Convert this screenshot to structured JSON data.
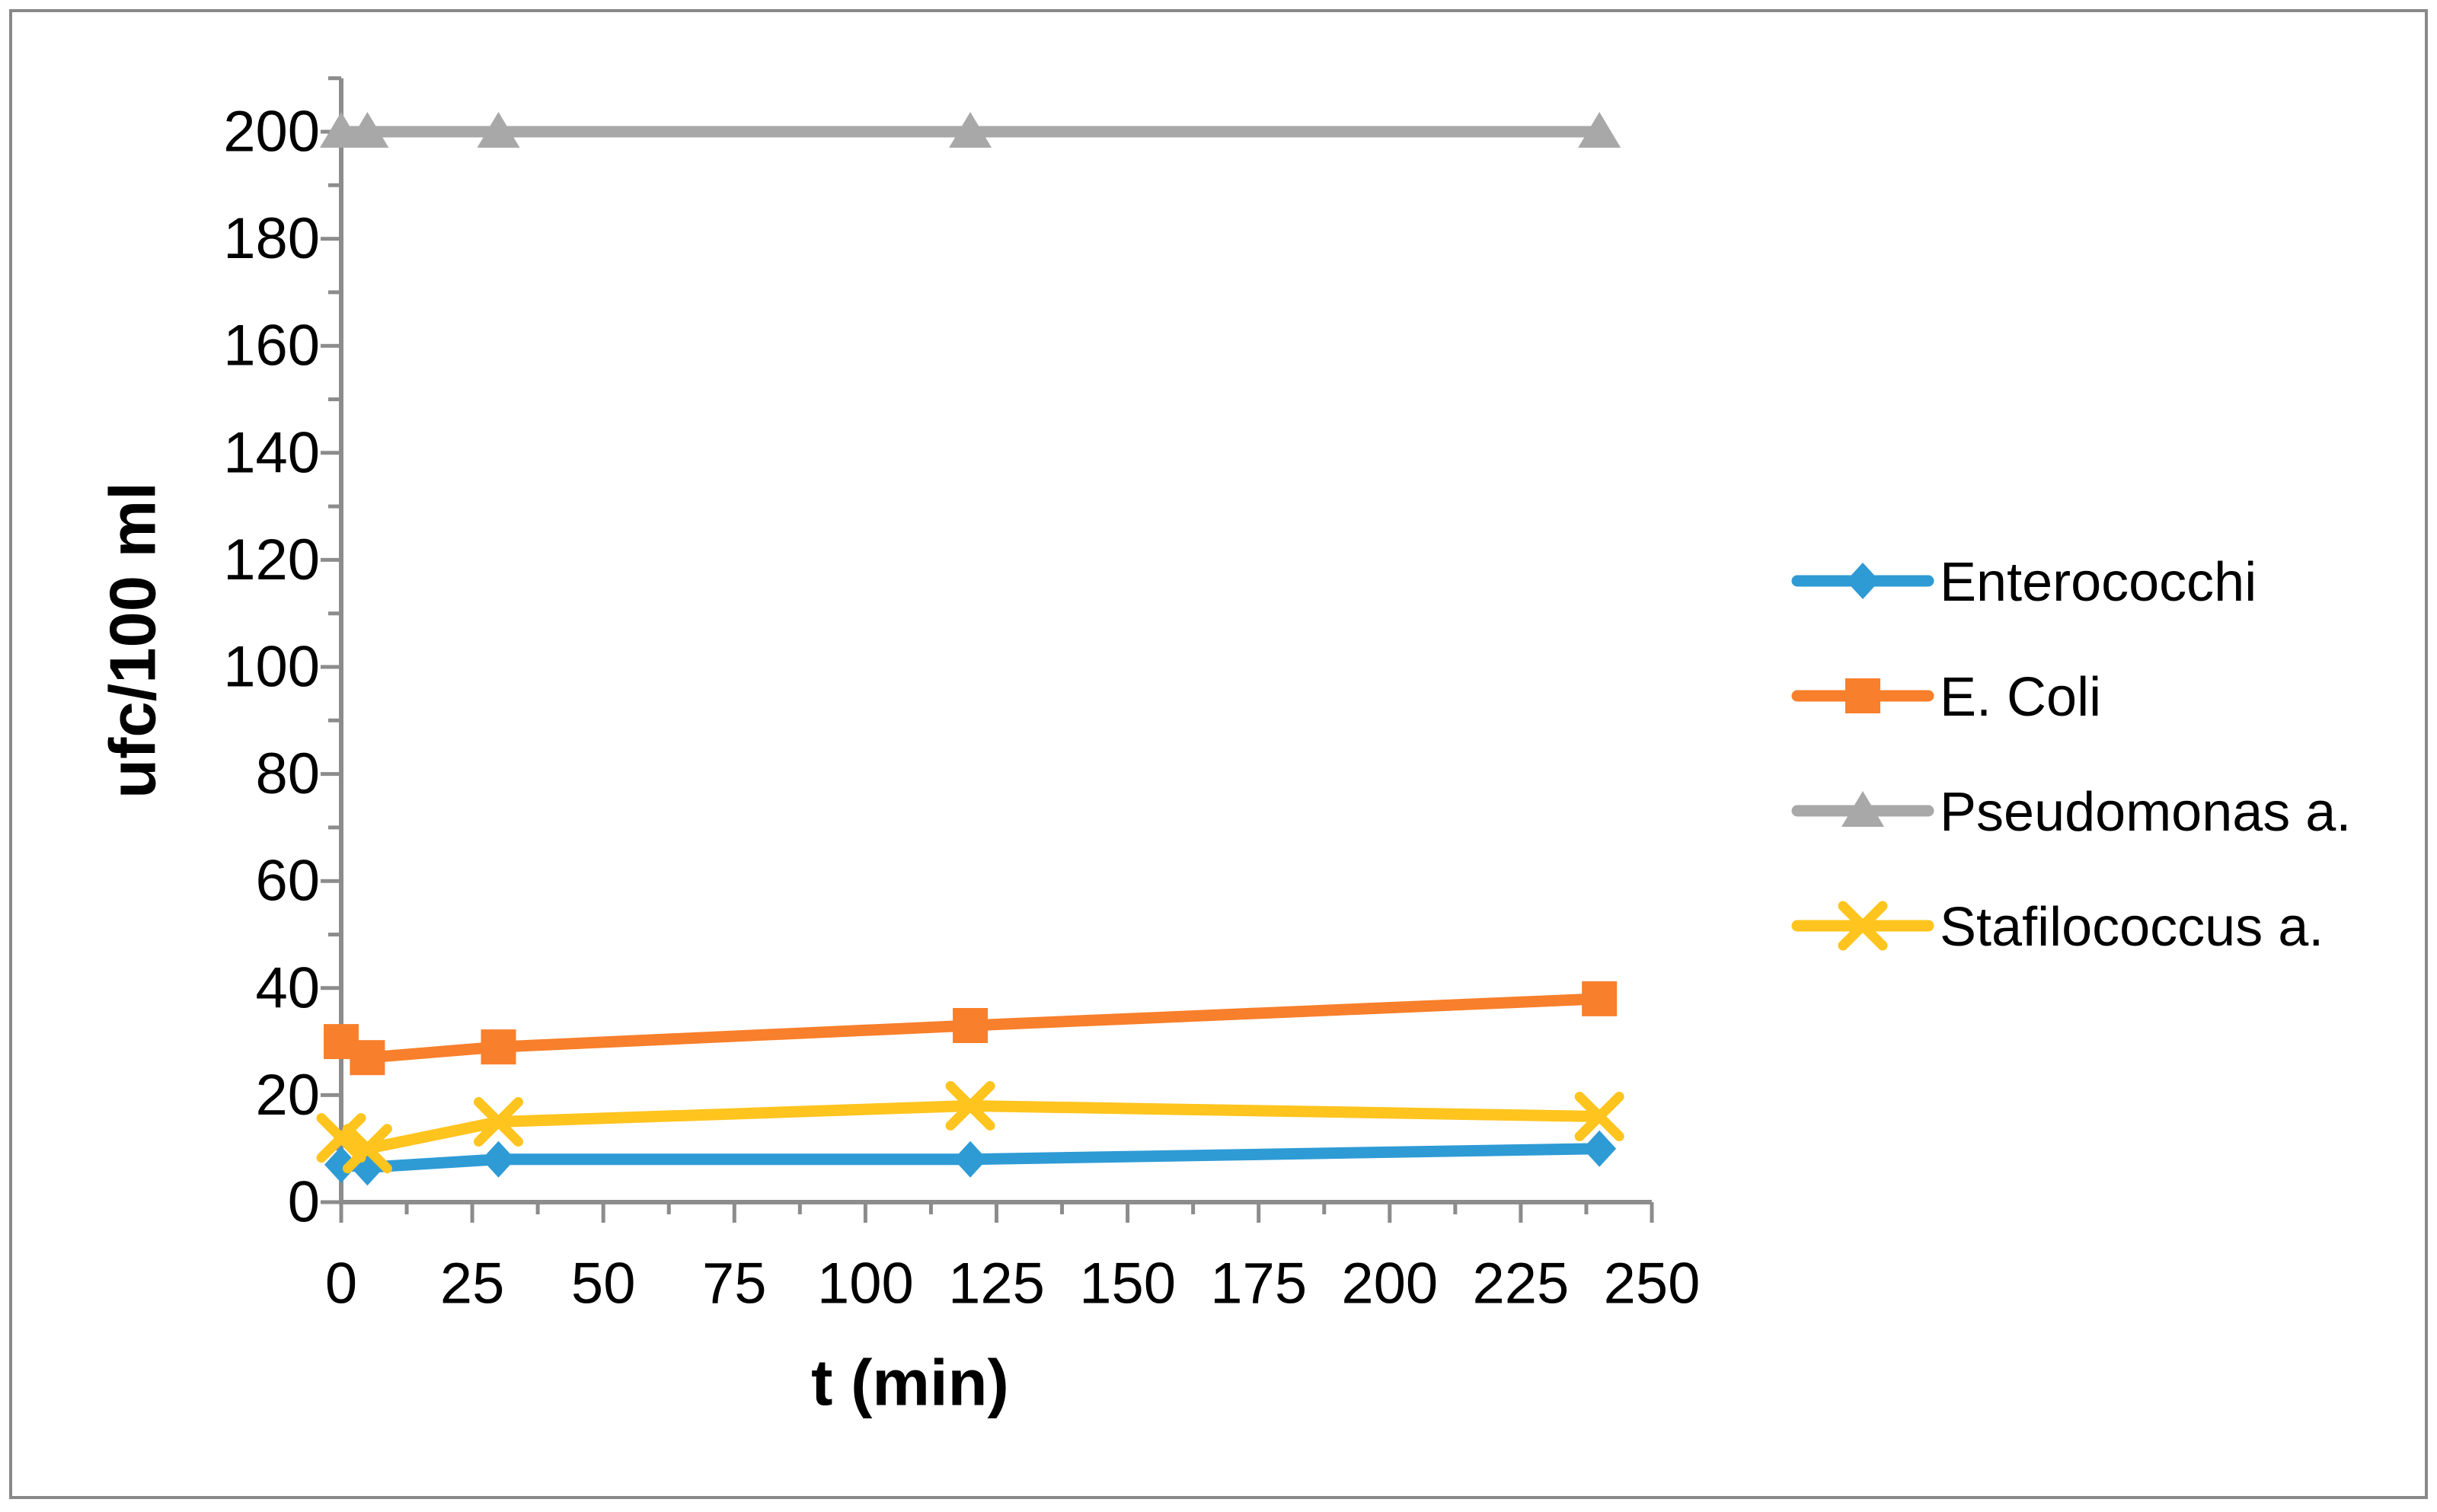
{
  "chart_data": {
    "type": "line",
    "title": "",
    "xlabel": "t (min)",
    "ylabel": "ufc/100 ml",
    "x": [
      0,
      5,
      30,
      120,
      240
    ],
    "series": [
      {
        "name": "Enterococchi",
        "color": "#2E9BD5",
        "marker": "diamond",
        "values": [
          7,
          6.5,
          8,
          8,
          10
        ]
      },
      {
        "name": "E. Coli",
        "color": "#F87F2B",
        "marker": "square",
        "values": [
          30,
          27,
          29,
          33,
          38
        ]
      },
      {
        "name": "Pseudomonas a.",
        "color": "#A8A8A8",
        "marker": "triangle",
        "values": [
          200,
          200,
          200,
          200,
          200
        ]
      },
      {
        "name": "Stafilococcus a.",
        "color": "#FFC41E",
        "marker": "x",
        "values": [
          12,
          10,
          15,
          18,
          16
        ]
      }
    ],
    "xlim": [
      0,
      250
    ],
    "ylim": [
      0,
      200
    ],
    "x_ticks": [
      0,
      25,
      50,
      75,
      100,
      125,
      150,
      175,
      200,
      225,
      250
    ],
    "y_ticks": [
      0,
      20,
      40,
      60,
      80,
      100,
      120,
      140,
      160,
      180,
      200
    ],
    "x_minor_step": 12.5,
    "y_minor_step": 10,
    "y_axis_overshoot": 210,
    "grid": false,
    "legend_position": "right",
    "axis_color": "#8C8C8C",
    "border_color": "#898989",
    "text_color": "#000000",
    "background_color": "#FFFFFF"
  }
}
